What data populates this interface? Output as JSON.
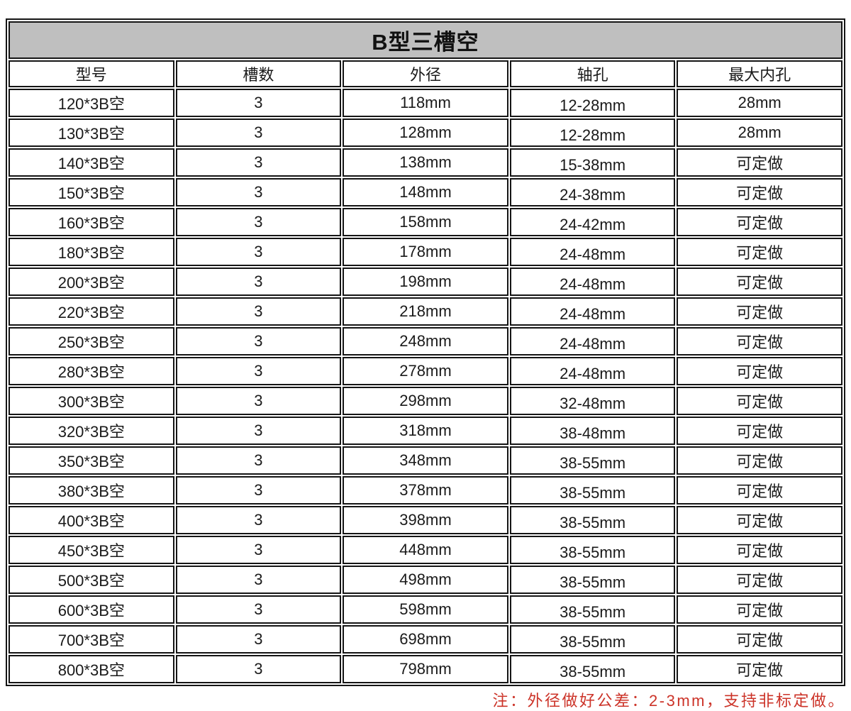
{
  "table": {
    "title": "B型三槽空",
    "columns": [
      "型号",
      "槽数",
      "外径",
      "轴孔",
      "最大内孔"
    ],
    "rows": [
      [
        "120*3B空",
        "3",
        "118mm",
        "12-28mm",
        "28mm"
      ],
      [
        "130*3B空",
        "3",
        "128mm",
        "12-28mm",
        "28mm"
      ],
      [
        "140*3B空",
        "3",
        "138mm",
        "15-38mm",
        "可定做"
      ],
      [
        "150*3B空",
        "3",
        "148mm",
        "24-38mm",
        "可定做"
      ],
      [
        "160*3B空",
        "3",
        "158mm",
        "24-42mm",
        "可定做"
      ],
      [
        "180*3B空",
        "3",
        "178mm",
        "24-48mm",
        "可定做"
      ],
      [
        "200*3B空",
        "3",
        "198mm",
        "24-48mm",
        "可定做"
      ],
      [
        "220*3B空",
        "3",
        "218mm",
        "24-48mm",
        "可定做"
      ],
      [
        "250*3B空",
        "3",
        "248mm",
        "24-48mm",
        "可定做"
      ],
      [
        "280*3B空",
        "3",
        "278mm",
        "24-48mm",
        "可定做"
      ],
      [
        "300*3B空",
        "3",
        "298mm",
        "32-48mm",
        "可定做"
      ],
      [
        "320*3B空",
        "3",
        "318mm",
        "38-48mm",
        "可定做"
      ],
      [
        "350*3B空",
        "3",
        "348mm",
        "38-55mm",
        "可定做"
      ],
      [
        "380*3B空",
        "3",
        "378mm",
        "38-55mm",
        "可定做"
      ],
      [
        "400*3B空",
        "3",
        "398mm",
        "38-55mm",
        "可定做"
      ],
      [
        "450*3B空",
        "3",
        "448mm",
        "38-55mm",
        "可定做"
      ],
      [
        "500*3B空",
        "3",
        "498mm",
        "38-55mm",
        "可定做"
      ],
      [
        "600*3B空",
        "3",
        "598mm",
        "38-55mm",
        "可定做"
      ],
      [
        "700*3B空",
        "3",
        "698mm",
        "38-55mm",
        "可定做"
      ],
      [
        "800*3B空",
        "3",
        "798mm",
        "38-55mm",
        "可定做"
      ]
    ]
  },
  "note": {
    "text": "注：外径做好公差：2-3mm，支持非标定做。"
  },
  "colors": {
    "title_bg": "#bfbfbf",
    "border": "#151515",
    "note_red": "#cc3328"
  }
}
